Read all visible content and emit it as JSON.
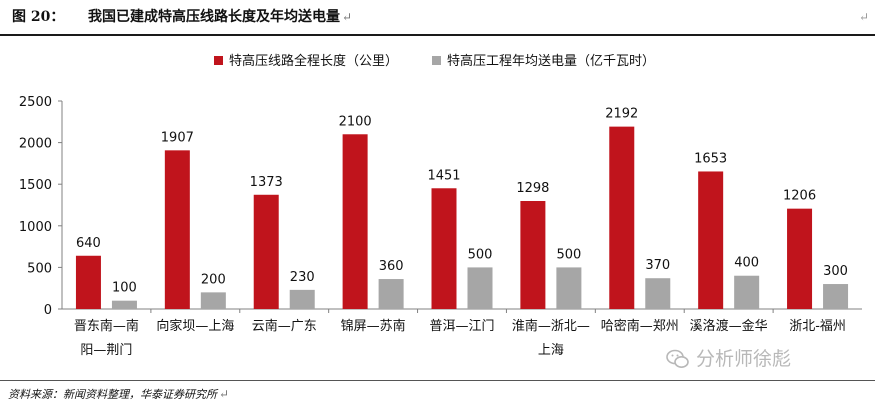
{
  "figure": {
    "number": "图 20：",
    "title": "我国已建成特高压线路长度及年均送电量",
    "source": "资料来源：新闻资料整理，华泰证券研究所",
    "watermark": "分析师徐彪"
  },
  "chart_data": {
    "type": "bar",
    "title": "",
    "xlabel": "",
    "ylabel": "",
    "ylim": [
      0,
      2500
    ],
    "yticks": [
      0,
      500,
      1000,
      1500,
      2000,
      2500
    ],
    "legend_position": "top-center",
    "grid": false,
    "categories": [
      [
        "晋东南—南",
        "阳—荆门"
      ],
      [
        "向家坝—上海"
      ],
      [
        "云南—广东"
      ],
      [
        "锦屏—苏南"
      ],
      [
        "普洱—江门"
      ],
      [
        "淮南—浙北—",
        "上海"
      ],
      [
        "哈密南—郑州"
      ],
      [
        "溪洛渡—金华"
      ],
      [
        "浙北-福州"
      ]
    ],
    "series": [
      {
        "name": "特高压线路全程长度（公里）",
        "color": "#c0141c",
        "values": [
          640,
          1907,
          1373,
          2100,
          1451,
          1298,
          2192,
          1653,
          1206
        ]
      },
      {
        "name": "特高压工程年均送电量（亿千瓦时）",
        "color": "#a6a6a6",
        "values": [
          100,
          200,
          230,
          360,
          500,
          500,
          370,
          400,
          300
        ]
      }
    ]
  }
}
